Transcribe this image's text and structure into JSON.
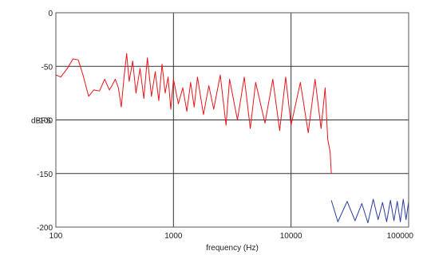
{
  "chart_data": {
    "type": "line",
    "title": "",
    "xlabel": "frequency (Hz)",
    "ylabel": "dBFS",
    "x_scale": "log",
    "xlim": [
      100,
      100000
    ],
    "ylim": [
      -200,
      0
    ],
    "x_ticks": [
      100,
      1000,
      10000,
      100000
    ],
    "x_tick_labels": [
      "100",
      "1000",
      "10000",
      "100000"
    ],
    "y_ticks": [
      0,
      -50,
      -100,
      -150,
      -200
    ],
    "y_tick_labels": [
      "0",
      "-50",
      "-100",
      "-150",
      "-200"
    ],
    "grid": true,
    "legend": "none",
    "colors": {
      "series1": "#e8141c",
      "series2": "#2a3d9e",
      "grid": "#333333",
      "frame": "#555555"
    },
    "series": [
      {
        "color": "#e8141c",
        "x": [
          100,
          110,
          125,
          140,
          155,
          170,
          190,
          210,
          235,
          260,
          285,
          300,
          320,
          340,
          360,
          380,
          400,
          420,
          450,
          480,
          520,
          560,
          600,
          650,
          700,
          750,
          800,
          850,
          900,
          950,
          1000,
          1100,
          1200,
          1300,
          1400,
          1500,
          1600,
          1800,
          2000,
          2200,
          2500,
          2800,
          3000,
          3500,
          4000,
          4500,
          5000,
          6000,
          7000,
          8000,
          9000,
          10000,
          12000,
          14000,
          16000,
          18000,
          19500,
          20500,
          21500,
          22000
        ],
        "y": [
          -58,
          -60,
          -52,
          -43,
          -44,
          -58,
          -78,
          -72,
          -73,
          -62,
          -72,
          -68,
          -62,
          -70,
          -88,
          -60,
          -38,
          -64,
          -45,
          -75,
          -52,
          -80,
          -42,
          -78,
          -55,
          -82,
          -48,
          -75,
          -60,
          -90,
          -62,
          -85,
          -70,
          -92,
          -65,
          -88,
          -60,
          -95,
          -68,
          -90,
          -58,
          -105,
          -62,
          -100,
          -60,
          -108,
          -65,
          -103,
          -62,
          -110,
          -60,
          -105,
          -65,
          -112,
          -62,
          -108,
          -70,
          -118,
          -130,
          -150
        ]
      },
      {
        "color": "#2a3d9e",
        "x": [
          22000,
          25000,
          30000,
          35000,
          40000,
          45000,
          50000,
          55000,
          60000,
          65000,
          70000,
          75000,
          80000,
          85000,
          90000,
          95000,
          100000
        ],
        "y": [
          -175,
          -195,
          -176,
          -194,
          -178,
          -196,
          -174,
          -193,
          -177,
          -195,
          -175,
          -194,
          -176,
          -195,
          -174,
          -193,
          -176
        ]
      }
    ]
  }
}
